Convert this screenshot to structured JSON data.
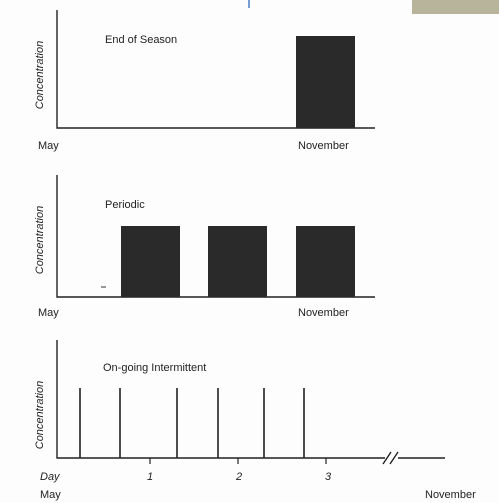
{
  "panels": [
    {
      "title": "End of Season",
      "y_axis_label": "Concentration",
      "x_labels": [
        "May",
        "November"
      ]
    },
    {
      "title": "Periodic",
      "y_axis_label": "Concentration",
      "x_labels": [
        "May",
        "November"
      ]
    },
    {
      "title": "On-going Intermittent",
      "y_axis_label": "Concentration",
      "x_labels": [
        "Day",
        "1",
        "2",
        "3"
      ],
      "bottom_labels": [
        "May",
        "November"
      ]
    }
  ]
}
